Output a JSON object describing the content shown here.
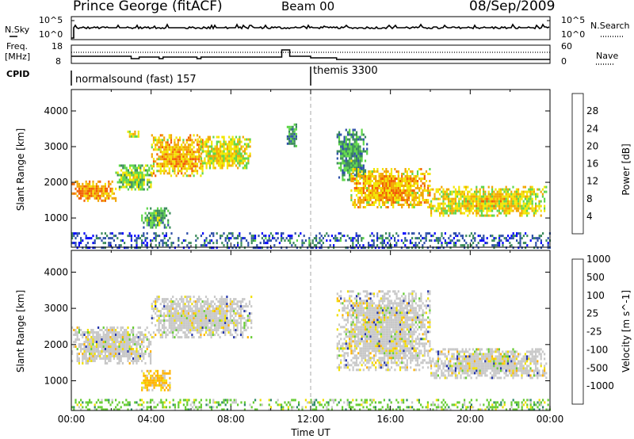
{
  "header": {
    "station": "Prince George (fitACF)",
    "beam": "Beam 00",
    "date": "08/Sep/2009"
  },
  "sky_panel": {
    "left_label": "N.Sky",
    "left_ticks": [
      "10^5",
      "10^0"
    ],
    "right_label": "N.Search",
    "right_ticks": [
      "10^5",
      "10^0"
    ]
  },
  "freq_panel": {
    "left_label_1": "Freq.",
    "left_label_2": "[MHz]",
    "left_ticks": [
      "18",
      "8"
    ],
    "right_label": "Nave",
    "right_ticks": [
      "60",
      "0"
    ]
  },
  "cpid": {
    "label": "CPID",
    "segments": [
      {
        "name": "normalsound (fast) 157",
        "start_hour": 0
      },
      {
        "name": "themis 3300",
        "start_hour": 12
      }
    ]
  },
  "colors": {
    "power": [
      "#0000ff",
      "#2e4fa8",
      "#3a8a5a",
      "#5fd64a",
      "#f2e600",
      "#f2a600",
      "#f26000",
      "#ff0000"
    ],
    "velocity": [
      "#ff0000",
      "#ff6a00",
      "#ffb200",
      "#f0e000",
      "#c8c8c8",
      "#66cc33",
      "#2e8a6a",
      "#2233aa"
    ]
  },
  "chart_data": [
    {
      "type": "heatmap",
      "name": "power",
      "ylabel": "Slant Range [km]",
      "xlim": [
        0,
        24
      ],
      "ylim": [
        180,
        4600
      ],
      "yticks": [
        1000,
        2000,
        3000,
        4000
      ],
      "colorbar_label": "Power [dB]",
      "colorbar_ticks": [
        "4",
        "8",
        "12",
        "16",
        "20",
        "24",
        "28"
      ],
      "colorbar_range": [
        0,
        32
      ],
      "regions": [
        {
          "t0": 0.0,
          "t1": 2.2,
          "r0": 1500,
          "r1": 2050,
          "v": 22
        },
        {
          "t0": 2.2,
          "t1": 4.0,
          "r0": 1800,
          "r1": 2500,
          "v": 14
        },
        {
          "t0": 3.5,
          "t1": 4.9,
          "r0": 750,
          "r1": 1300,
          "v": 11
        },
        {
          "t0": 4.0,
          "t1": 6.6,
          "r0": 2200,
          "r1": 3350,
          "v": 20
        },
        {
          "t0": 6.3,
          "t1": 9.0,
          "r0": 2400,
          "r1": 3300,
          "v": 17
        },
        {
          "t0": 2.8,
          "t1": 3.4,
          "r0": 3300,
          "r1": 3450,
          "v": 18
        },
        {
          "t0": 10.8,
          "t1": 11.3,
          "r0": 3000,
          "r1": 3650,
          "v": 9
        },
        {
          "t0": 13.3,
          "t1": 14.8,
          "r0": 2100,
          "r1": 3500,
          "v": 10
        },
        {
          "t0": 14.0,
          "t1": 18.0,
          "r0": 1300,
          "r1": 2400,
          "v": 20
        },
        {
          "t0": 18.0,
          "t1": 23.8,
          "r0": 1100,
          "r1": 1900,
          "v": 18
        },
        {
          "t0": 0.0,
          "t1": 24.0,
          "r0": 200,
          "r1": 600,
          "v": 6
        }
      ]
    },
    {
      "type": "heatmap",
      "name": "velocity",
      "ylabel": "Slant Range [km]",
      "xlabel": "Time UT",
      "xlim": [
        0,
        24
      ],
      "ylim": [
        180,
        4600
      ],
      "yticks": [
        1000,
        2000,
        3000,
        4000
      ],
      "xticks": [
        "00:00",
        "04:00",
        "08:00",
        "12:00",
        "16:00",
        "20:00",
        "00:00"
      ],
      "colorbar_label": "Velocity [m s^-1]",
      "colorbar_ticks": [
        "-1000",
        "-500",
        "-100",
        "-25",
        "25",
        "100",
        "500",
        "1000"
      ],
      "regions": [
        {
          "t0": 0.0,
          "t1": 4.0,
          "r0": 1500,
          "r1": 2500,
          "v": 0
        },
        {
          "t0": 3.5,
          "t1": 4.9,
          "r0": 750,
          "r1": 1300,
          "v": -200
        },
        {
          "t0": 4.0,
          "t1": 9.0,
          "r0": 2200,
          "r1": 3350,
          "v": 0
        },
        {
          "t0": 13.3,
          "t1": 18.0,
          "r0": 1300,
          "r1": 3500,
          "v": 0
        },
        {
          "t0": 18.0,
          "t1": 23.8,
          "r0": 1100,
          "r1": 1900,
          "v": 0
        },
        {
          "t0": 0.0,
          "t1": 24.0,
          "r0": 200,
          "r1": 500,
          "v": 50
        }
      ]
    }
  ]
}
